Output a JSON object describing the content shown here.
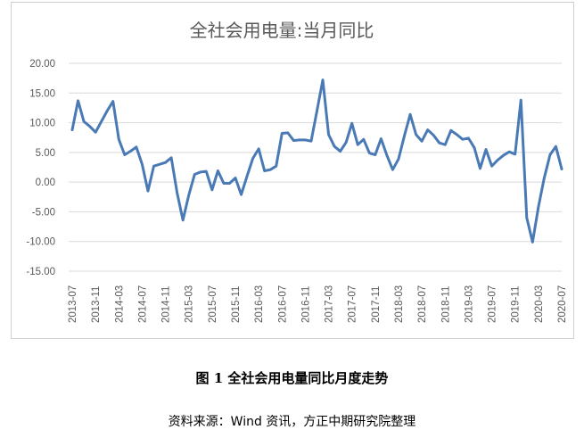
{
  "figure": {
    "caption": "图 1  全社会用电量同比月度走势",
    "source": "资料来源：Wind 资讯，方正中期研究院整理"
  },
  "chart_data": {
    "type": "line",
    "title": "全社会用电量:当月同比",
    "xlabel": "",
    "ylabel": "",
    "ylim": [
      -15,
      20
    ],
    "yticks": [
      "20.00",
      "15.00",
      "10.00",
      "5.00",
      "0.00",
      "-5.00",
      "-10.00",
      "-15.00"
    ],
    "grid": true,
    "colors": {
      "line": "#4a7ab5",
      "grid": "#d9d9d9",
      "axis_text": "#595959",
      "title": "#595959"
    },
    "x_tick_labels": [
      "2013-07",
      "2013-11",
      "2014-03",
      "2014-07",
      "2014-11",
      "2015-03",
      "2015-07",
      "2015-11",
      "2016-03",
      "2016-07",
      "2016-11",
      "2017-03",
      "2017-07",
      "2017-11",
      "2018-03",
      "2018-07",
      "2018-11",
      "2019-03",
      "2019-07",
      "2019-11",
      "2020-03",
      "2020-07"
    ],
    "x": [
      "2013-07",
      "2013-08",
      "2013-09",
      "2013-10",
      "2013-11",
      "2013-12",
      "2014-01",
      "2014-02",
      "2014-03",
      "2014-04",
      "2014-05",
      "2014-06",
      "2014-07",
      "2014-08",
      "2014-09",
      "2014-10",
      "2014-11",
      "2014-12",
      "2015-01",
      "2015-02",
      "2015-03",
      "2015-04",
      "2015-05",
      "2015-06",
      "2015-07",
      "2015-08",
      "2015-09",
      "2015-10",
      "2015-11",
      "2015-12",
      "2016-01",
      "2016-02",
      "2016-03",
      "2016-04",
      "2016-05",
      "2016-06",
      "2016-07",
      "2016-08",
      "2016-09",
      "2016-10",
      "2016-11",
      "2016-12",
      "2017-01",
      "2017-02",
      "2017-03",
      "2017-04",
      "2017-05",
      "2017-06",
      "2017-07",
      "2017-08",
      "2017-09",
      "2017-10",
      "2017-11",
      "2017-12",
      "2018-01",
      "2018-02",
      "2018-03",
      "2018-04",
      "2018-05",
      "2018-06",
      "2018-07",
      "2018-08",
      "2018-09",
      "2018-10",
      "2018-11",
      "2018-12",
      "2019-01",
      "2019-02",
      "2019-03",
      "2019-04",
      "2019-05",
      "2019-06",
      "2019-07",
      "2019-08",
      "2019-09",
      "2019-10",
      "2019-11",
      "2019-12",
      "2020-01",
      "2020-02",
      "2020-03",
      "2020-04",
      "2020-05",
      "2020-06",
      "2020-07"
    ],
    "series": [
      {
        "values": [
          8.8,
          13.7,
          10.2,
          9.4,
          8.4,
          10.2,
          12.0,
          13.6,
          7.2,
          4.6,
          5.2,
          5.9,
          3.0,
          -1.5,
          2.7,
          3.0,
          3.3,
          4.1,
          -1.8,
          -6.4,
          -2.2,
          1.3,
          1.7,
          1.8,
          -1.3,
          1.9,
          -0.2,
          -0.2,
          0.7,
          -2.1,
          1.0,
          4.0,
          5.6,
          1.9,
          2.1,
          2.7,
          8.2,
          8.3,
          7.0,
          7.1,
          7.1,
          6.9,
          12.0,
          17.2,
          8.0,
          6.0,
          5.2,
          6.7,
          9.9,
          6.3,
          7.2,
          4.9,
          4.6,
          7.3,
          4.5,
          2.1,
          3.9,
          7.8,
          11.4,
          8.0,
          6.9,
          8.8,
          7.9,
          6.6,
          6.3,
          8.7,
          8.0,
          7.2,
          7.4,
          5.8,
          2.3,
          5.5,
          2.7,
          3.7,
          4.5,
          5.1,
          4.7,
          13.8,
          -6.0,
          -10.1,
          -4.2,
          0.7,
          4.6,
          6.0,
          2.2
        ]
      }
    ]
  }
}
